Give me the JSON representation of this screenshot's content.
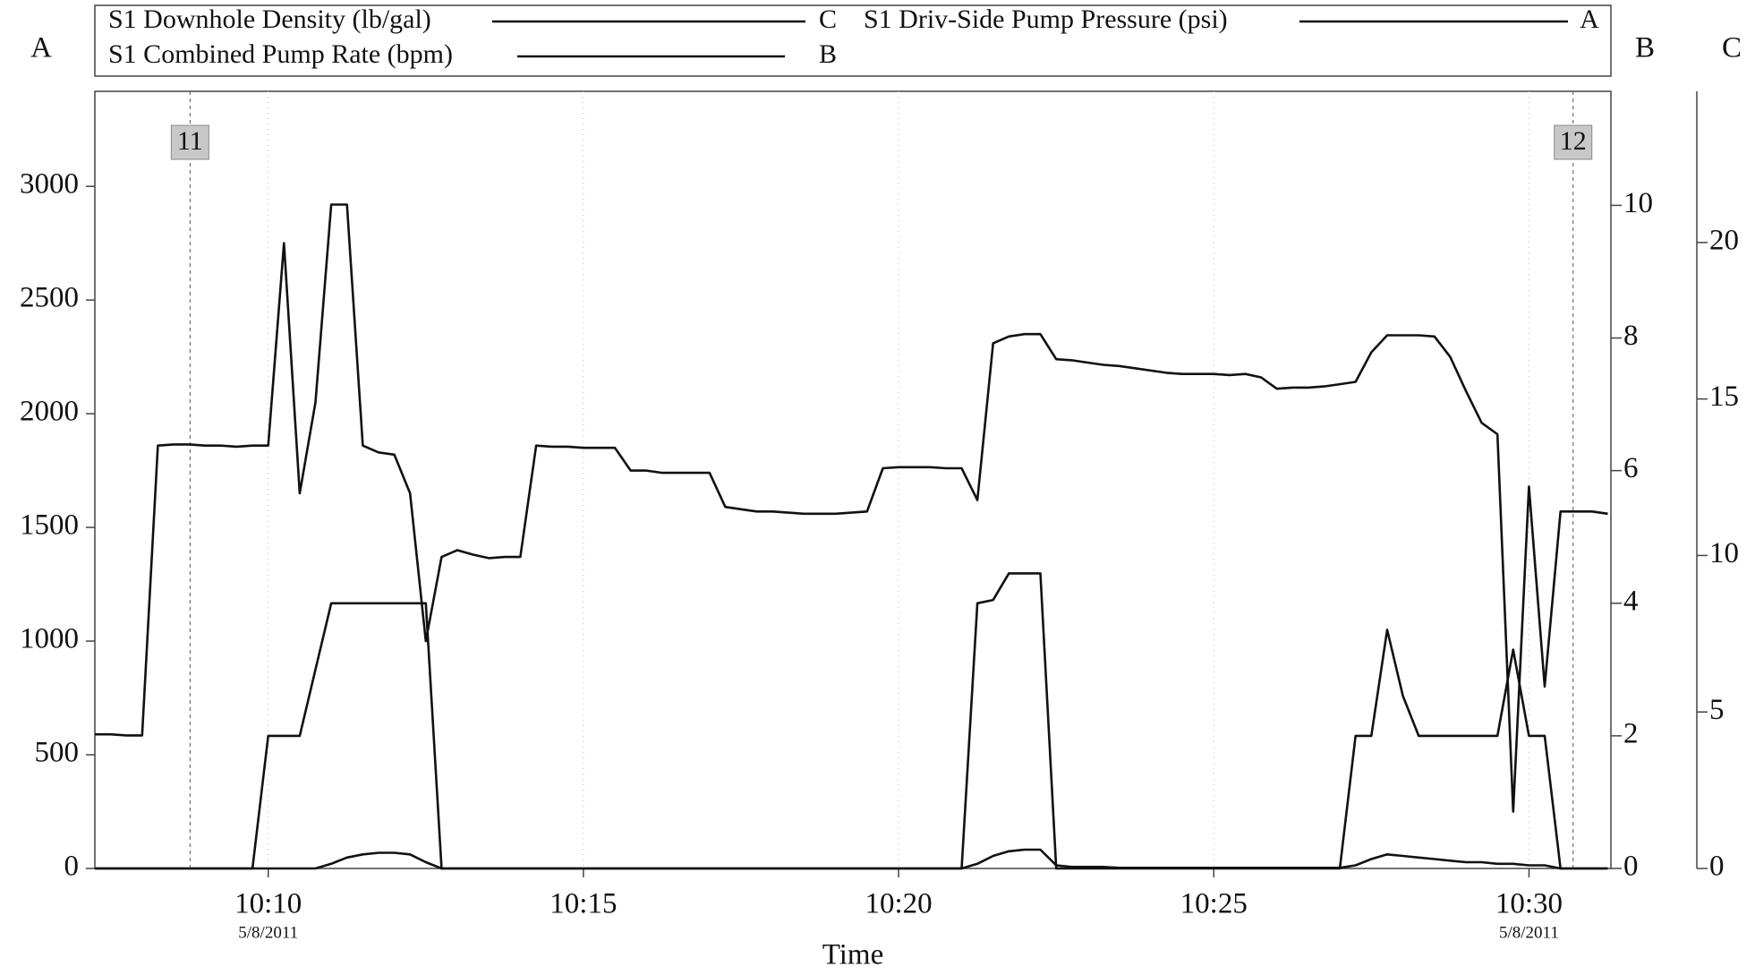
{
  "chart_data": {
    "type": "line",
    "x_label": "Time",
    "y_label": "A",
    "y2_label": "B",
    "y3_label": "C",
    "x": [
      7.25,
      7.5,
      7.75,
      8,
      8.25,
      8.5,
      8.75,
      9,
      9.25,
      9.5,
      9.75,
      10,
      10.25,
      10.5,
      10.75,
      11,
      11.25,
      11.5,
      11.75,
      12,
      12.25,
      12.5,
      12.75,
      13,
      13.25,
      13.5,
      13.75,
      14,
      14.25,
      14.5,
      14.75,
      15,
      15.25,
      15.5,
      15.75,
      16,
      16.25,
      16.5,
      16.75,
      17,
      17.25,
      17.5,
      17.75,
      18,
      18.25,
      18.5,
      18.75,
      19,
      19.25,
      19.5,
      19.75,
      20,
      20.25,
      20.5,
      20.75,
      21,
      21.25,
      21.5,
      21.75,
      22,
      22.25,
      22.5,
      22.75,
      23,
      23.25,
      23.5,
      23.75,
      24,
      24.25,
      24.5,
      24.75,
      25,
      25.25,
      25.5,
      25.75,
      26,
      26.25,
      26.5,
      26.75,
      27,
      27.25,
      27.5,
      27.75,
      28,
      28.25,
      28.5,
      28.75,
      29,
      29.25,
      29.5,
      29.75,
      30,
      30.25,
      30.5,
      30.75,
      31,
      31.25
    ],
    "series": [
      {
        "name": "S1 Downhole Density (lb/gal)",
        "color": "#111111",
        "axis": "y3",
        "values": [
          0,
          0,
          0,
          0,
          0,
          0,
          0,
          0,
          0,
          0,
          0,
          0,
          0,
          0,
          0,
          0.15,
          0.35,
          0.45,
          0.5,
          0.5,
          0.45,
          0.2,
          0,
          0,
          0,
          0,
          0,
          0,
          0,
          0,
          0,
          0,
          0,
          0,
          0,
          0,
          0,
          0,
          0,
          0,
          0,
          0,
          0,
          0,
          0,
          0,
          0,
          0,
          0,
          0,
          0,
          0,
          0,
          0,
          0,
          0,
          0.15,
          0.4,
          0.55,
          0.6,
          0.6,
          0.1,
          0.05,
          0.05,
          0.05,
          0.02,
          0.02,
          0.02,
          0.02,
          0.02,
          0.02,
          0.02,
          0.02,
          0.02,
          0.02,
          0.02,
          0.02,
          0.02,
          0.02,
          0.02,
          0.1,
          0.3,
          0.45,
          0.4,
          0.35,
          0.3,
          0.25,
          0.2,
          0.2,
          0.15,
          0.15,
          0.1,
          0.1,
          0,
          0,
          0,
          0
        ]
      },
      {
        "name": "S1 Driv-Side Pump Pressure (psi)",
        "color": "#111111",
        "axis": "y",
        "values": [
          590,
          590,
          585,
          585,
          1860,
          1865,
          1865,
          1860,
          1860,
          1855,
          1860,
          1860,
          2750,
          1650,
          2050,
          2920,
          2920,
          1860,
          1830,
          1820,
          1650,
          1000,
          1370,
          1400,
          1380,
          1365,
          1370,
          1370,
          1860,
          1855,
          1855,
          1850,
          1850,
          1850,
          1750,
          1750,
          1740,
          1740,
          1740,
          1740,
          1590,
          1580,
          1570,
          1570,
          1565,
          1560,
          1560,
          1560,
          1565,
          1570,
          1760,
          1765,
          1765,
          1765,
          1760,
          1760,
          1620,
          2310,
          2340,
          2350,
          2350,
          2240,
          2235,
          2225,
          2215,
          2210,
          2200,
          2190,
          2180,
          2175,
          2175,
          2175,
          2170,
          2175,
          2160,
          2110,
          2115,
          2115,
          2120,
          2130,
          2140,
          2270,
          2345,
          2345,
          2345,
          2340,
          2250,
          2100,
          1960,
          1910,
          250,
          1680,
          800,
          1570,
          1570,
          1570,
          1560
        ]
      },
      {
        "name": "S1 Combined Pump Rate (bpm)",
        "color": "#111111",
        "axis": "y2",
        "values": [
          0,
          0,
          0,
          0,
          0,
          0,
          0,
          0,
          0,
          0,
          0,
          2,
          2,
          2,
          3,
          4,
          4,
          4,
          4,
          4,
          4,
          4,
          0,
          0,
          0,
          0,
          0,
          0,
          0,
          0,
          0,
          0,
          0,
          0,
          0,
          0,
          0,
          0,
          0,
          0,
          0,
          0,
          0,
          0,
          0,
          0,
          0,
          0,
          0,
          0,
          0,
          0,
          0,
          0,
          0,
          0,
          4,
          4.05,
          4.45,
          4.45,
          4.45,
          0,
          0,
          0,
          0,
          0,
          0,
          0,
          0,
          0,
          0,
          0,
          0,
          0,
          0,
          0,
          0,
          0,
          0,
          0,
          2,
          2,
          3.6,
          2.6,
          2,
          2,
          2,
          2,
          2,
          2,
          3.3,
          2,
          2,
          0,
          0,
          0,
          0
        ]
      }
    ],
    "xlim": [
      7.25,
      31.3
    ],
    "xticks": [
      {
        "value": 10,
        "label": "10:10"
      },
      {
        "value": 15,
        "label": "10:15"
      },
      {
        "value": 20,
        "label": "10:20"
      },
      {
        "value": 25,
        "label": "10:25"
      },
      {
        "value": 30,
        "label": "10:30"
      }
    ],
    "date_labels": [
      {
        "x": 10,
        "label": "5/8/2011"
      },
      {
        "x": 30,
        "label": "5/8/2011"
      }
    ],
    "ylim": [
      0,
      3418
    ],
    "yticks": [
      0,
      500,
      1000,
      1500,
      2000,
      2500,
      3000
    ],
    "y2lim": [
      0,
      11.72
    ],
    "y2ticks": [
      0,
      2,
      4,
      6,
      8,
      10
    ],
    "y3lim": [
      0,
      24.83
    ],
    "y3ticks": [
      0,
      5,
      10,
      15,
      20
    ],
    "events": [
      {
        "x": 8.76,
        "label": "11"
      },
      {
        "x": 30.7,
        "label": "12"
      }
    ],
    "grid": true
  }
}
